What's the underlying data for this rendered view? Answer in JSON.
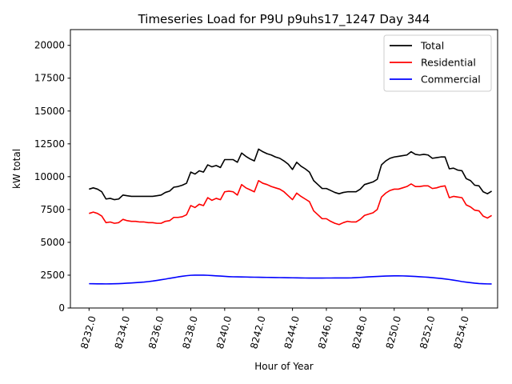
{
  "chart_data": {
    "type": "line",
    "title": "Timeseries Load for P9U p9uhs17_1247  Day 344",
    "xlabel": "Hour of Year",
    "ylabel": "kW total",
    "xlim": [
      8230.9,
      8256.1
    ],
    "ylim": [
      0,
      21200
    ],
    "xticks": [
      8232,
      8234,
      8236,
      8238,
      8240,
      8242,
      8244,
      8246,
      8248,
      8250,
      8252,
      8254
    ],
    "xtick_labels": [
      "8232.0",
      "8234.0",
      "8236.0",
      "8238.0",
      "8240.0",
      "8242.0",
      "8244.0",
      "8246.0",
      "8248.0",
      "8250.0",
      "8252.0",
      "8254.0"
    ],
    "yticks": [
      0,
      2500,
      5000,
      7500,
      10000,
      12500,
      15000,
      17500,
      20000
    ],
    "ytick_labels": [
      "0",
      "2500",
      "5000",
      "7500",
      "10000",
      "12500",
      "15000",
      "17500",
      "20000"
    ],
    "grid": false,
    "legend_position": "top-right",
    "x": [
      8232.0,
      8232.25,
      8232.5,
      8232.75,
      8233.0,
      8233.25,
      8233.5,
      8233.75,
      8234.0,
      8234.25,
      8234.5,
      8234.75,
      8235.0,
      8235.25,
      8235.5,
      8235.75,
      8236.0,
      8236.25,
      8236.5,
      8236.75,
      8237.0,
      8237.25,
      8237.5,
      8237.75,
      8238.0,
      8238.25,
      8238.5,
      8238.75,
      8239.0,
      8239.25,
      8239.5,
      8239.75,
      8240.0,
      8240.25,
      8240.5,
      8240.75,
      8241.0,
      8241.25,
      8241.5,
      8241.75,
      8242.0,
      8242.25,
      8242.5,
      8242.75,
      8243.0,
      8243.25,
      8243.5,
      8243.75,
      8244.0,
      8244.25,
      8244.5,
      8244.75,
      8245.0,
      8245.25,
      8245.5,
      8245.75,
      8246.0,
      8246.25,
      8246.5,
      8246.75,
      8247.0,
      8247.25,
      8247.5,
      8247.75,
      8248.0,
      8248.25,
      8248.5,
      8248.75,
      8249.0,
      8249.25,
      8249.5,
      8249.75,
      8250.0,
      8250.25,
      8250.5,
      8250.75,
      8251.0,
      8251.25,
      8251.5,
      8251.75,
      8252.0,
      8252.25,
      8252.5,
      8252.75,
      8253.0,
      8253.25,
      8253.5,
      8253.75,
      8254.0,
      8254.25,
      8254.5,
      8254.75,
      8255.0,
      8255.25,
      8255.5,
      8255.75
    ],
    "series": [
      {
        "name": "Total",
        "color": "#000000",
        "values": [
          9050,
          9150,
          9050,
          8850,
          8300,
          8350,
          8250,
          8300,
          8600,
          8550,
          8500,
          8500,
          8500,
          8500,
          8500,
          8500,
          8550,
          8600,
          8800,
          8900,
          9200,
          9250,
          9350,
          9500,
          10350,
          10200,
          10450,
          10350,
          10900,
          10750,
          10850,
          10700,
          11300,
          11300,
          11300,
          11100,
          11800,
          11550,
          11350,
          11200,
          12100,
          11900,
          11750,
          11650,
          11500,
          11400,
          11200,
          10950,
          10550,
          11100,
          10800,
          10600,
          10350,
          9700,
          9400,
          9100,
          9100,
          8950,
          8800,
          8700,
          8800,
          8850,
          8850,
          8850,
          9050,
          9400,
          9500,
          9600,
          9800,
          10900,
          11200,
          11400,
          11500,
          11550,
          11600,
          11650,
          11900,
          11700,
          11650,
          11700,
          11650,
          11400,
          11450,
          11500,
          11500,
          10600,
          10650,
          10500,
          10450,
          9850,
          9700,
          9350,
          9300,
          8850,
          8700,
          8900
        ]
      },
      {
        "name": "Residential",
        "color": "#ff0000",
        "values": [
          7200,
          7300,
          7200,
          7000,
          6500,
          6550,
          6450,
          6500,
          6750,
          6650,
          6600,
          6600,
          6550,
          6550,
          6500,
          6500,
          6450,
          6450,
          6600,
          6650,
          6900,
          6900,
          6950,
          7100,
          7800,
          7650,
          7900,
          7800,
          8400,
          8200,
          8350,
          8250,
          8850,
          8900,
          8850,
          8600,
          9400,
          9150,
          9000,
          8850,
          9700,
          9500,
          9400,
          9250,
          9150,
          9050,
          8850,
          8550,
          8250,
          8750,
          8500,
          8300,
          8100,
          7400,
          7100,
          6800,
          6800,
          6600,
          6450,
          6350,
          6500,
          6600,
          6550,
          6550,
          6750,
          7050,
          7150,
          7250,
          7500,
          8450,
          8750,
          8950,
          9050,
          9050,
          9150,
          9250,
          9450,
          9250,
          9250,
          9300,
          9300,
          9100,
          9150,
          9250,
          9300,
          8400,
          8500,
          8450,
          8400,
          7850,
          7700,
          7450,
          7400,
          7000,
          6850,
          7050
        ]
      },
      {
        "name": "Commercial",
        "color": "#0000ff",
        "values": [
          1850,
          1845,
          1840,
          1838,
          1835,
          1840,
          1845,
          1855,
          1870,
          1890,
          1910,
          1930,
          1955,
          1975,
          2010,
          2050,
          2100,
          2150,
          2200,
          2260,
          2310,
          2370,
          2420,
          2460,
          2490,
          2500,
          2505,
          2500,
          2490,
          2470,
          2450,
          2430,
          2410,
          2390,
          2375,
          2370,
          2365,
          2360,
          2350,
          2345,
          2340,
          2335,
          2330,
          2325,
          2320,
          2315,
          2310,
          2305,
          2300,
          2295,
          2290,
          2285,
          2280,
          2280,
          2280,
          2280,
          2285,
          2285,
          2290,
          2290,
          2290,
          2290,
          2295,
          2310,
          2330,
          2350,
          2370,
          2385,
          2400,
          2415,
          2430,
          2440,
          2450,
          2450,
          2445,
          2435,
          2420,
          2400,
          2380,
          2360,
          2340,
          2310,
          2280,
          2250,
          2210,
          2170,
          2120,
          2070,
          2010,
          1970,
          1930,
          1890,
          1860,
          1845,
          1835,
          1830
        ]
      }
    ]
  }
}
